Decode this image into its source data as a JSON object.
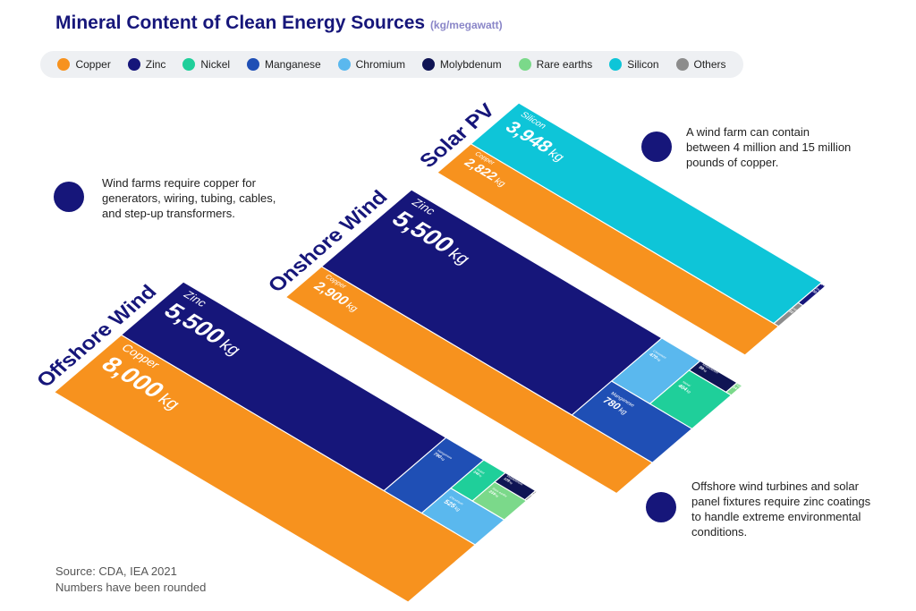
{
  "title": "Mineral Content of Clean Energy Sources",
  "subtitle": "(kg/megawatt)",
  "legend": [
    {
      "name": "Copper",
      "color": "#f7921e"
    },
    {
      "name": "Zinc",
      "color": "#16167a"
    },
    {
      "name": "Nickel",
      "color": "#1fcf9a"
    },
    {
      "name": "Manganese",
      "color": "#1f4fb5"
    },
    {
      "name": "Chromium",
      "color": "#5ab8ee"
    },
    {
      "name": "Molybdenum",
      "color": "#0f1454"
    },
    {
      "name": "Rare earths",
      "color": "#7bd98a"
    },
    {
      "name": "Silicon",
      "color": "#0ec5d8"
    },
    {
      "name": "Others",
      "color": "#8c8c8c"
    }
  ],
  "chart_data": [
    {
      "type": "treemap",
      "title": "Offshore Wind",
      "unit": "kg",
      "categories": [
        "Copper",
        "Zinc",
        "Manganese",
        "Chromium",
        "Nickel",
        "Rare earths",
        "Molybdenum",
        "Others"
      ],
      "values": [
        8000,
        5500,
        790,
        525,
        240,
        239,
        109,
        6
      ],
      "value_labels": [
        "8,000",
        "5,500",
        "790",
        "525",
        "240",
        "239",
        "109",
        "6"
      ]
    },
    {
      "type": "treemap",
      "title": "Onshore Wind",
      "unit": "kg",
      "categories": [
        "Copper",
        "Zinc",
        "Manganese",
        "Chromium",
        "Nickel",
        "Molybdenum",
        "Rare earths"
      ],
      "values": [
        2900,
        5500,
        780,
        470,
        404,
        99,
        14
      ],
      "value_labels": [
        "2,900",
        "5,500",
        "780",
        "470",
        "404",
        "99",
        "14"
      ]
    },
    {
      "type": "treemap",
      "title": "Solar PV",
      "unit": "kg",
      "categories": [
        "Copper",
        "Silicon",
        "Others",
        "Zinc",
        "Nickel"
      ],
      "values": [
        2822,
        3948,
        32,
        30,
        1
      ],
      "value_labels": [
        "2,822",
        "3,948",
        "32",
        "30",
        "1"
      ]
    }
  ],
  "notes": [
    "Wind farms require copper for generators, wiring, tubing, cables, and step-up transformers.",
    "A wind farm can contain between 4 million and 15 million pounds of copper.",
    "Offshore wind turbines and solar panel fixtures require zinc coatings to handle extreme environmental conditions."
  ],
  "source": [
    "Source: CDA, IEA 2021",
    "Numbers have been rounded"
  ]
}
